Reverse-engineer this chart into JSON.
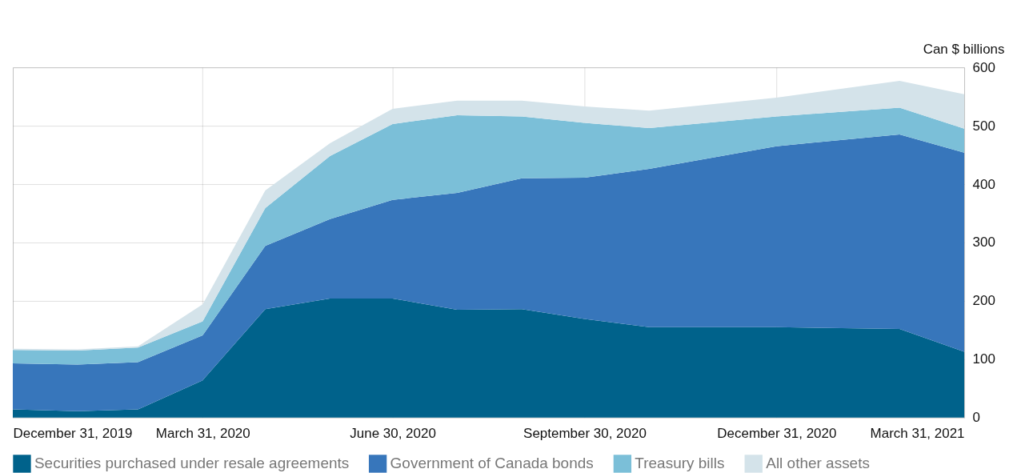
{
  "chart_data": {
    "type": "area",
    "stacked": true,
    "ylabel": "Can $ billions",
    "x": [
      "2019-12-31",
      "2020-01-31",
      "2020-02-29",
      "2020-03-31",
      "2020-04-30",
      "2020-05-31",
      "2020-06-30",
      "2020-07-31",
      "2020-08-31",
      "2020-09-30",
      "2020-10-31",
      "2020-12-31",
      "2021-02-28",
      "2021-03-31"
    ],
    "series": [
      {
        "name": "Securities purchased under resale agreements",
        "color": "#00628b",
        "values": [
          14,
          11,
          14,
          64,
          186,
          204,
          204,
          185,
          186,
          169,
          155,
          155,
          152,
          113
        ]
      },
      {
        "name": "Government of Canada bonds",
        "color": "#3776bb",
        "values": [
          79,
          80,
          81,
          77,
          108,
          136,
          169,
          200,
          224,
          242,
          271,
          310,
          333,
          341
        ]
      },
      {
        "name": "Treasury bills",
        "color": "#7bbfd8",
        "values": [
          23,
          24,
          25,
          24,
          65,
          108,
          130,
          133,
          106,
          94,
          70,
          51,
          46,
          41
        ]
      },
      {
        "name": "All other assets",
        "color": "#d4e3ea",
        "values": [
          2,
          2,
          2,
          29,
          30,
          22,
          26,
          25,
          27,
          28,
          30,
          32,
          46,
          59
        ]
      }
    ],
    "xlim": [
      "2019-12-31",
      "2021-03-31"
    ],
    "xticks": [
      {
        "value": "2019-12-31",
        "label": "December 31, 2019"
      },
      {
        "value": "2020-03-31",
        "label": "March 31, 2020"
      },
      {
        "value": "2020-06-30",
        "label": "June 30, 2020"
      },
      {
        "value": "2020-09-30",
        "label": "September 30, 2020"
      },
      {
        "value": "2020-12-31",
        "label": "December 31, 2020"
      },
      {
        "value": "2021-03-31",
        "label": "March 31, 2021"
      }
    ],
    "ylim": [
      0,
      600
    ],
    "yticks": [
      0,
      100,
      200,
      300,
      400,
      500,
      600
    ],
    "grid": true,
    "legend": "bottom"
  }
}
